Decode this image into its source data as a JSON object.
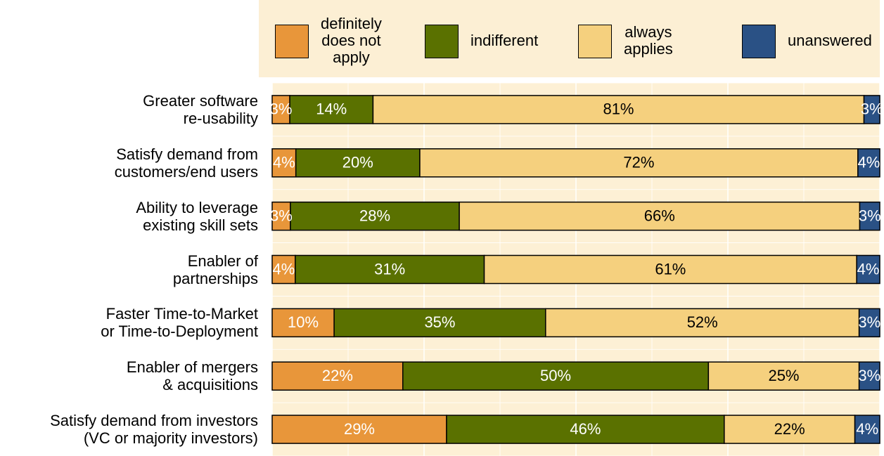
{
  "chart_data": {
    "type": "stacked_barh",
    "categories": [
      "Greater software\nre-usability",
      "Satisfy demand from\ncustomers/end users",
      "Ability to leverage\nexisting skill sets",
      "Enabler of\npartnerships",
      "Faster Time-to-Market\nor Time-to-Deployment",
      "Enabler of mergers\n& acquisitions",
      "Satisfy demand from investors\n(VC or majority investors)"
    ],
    "series": [
      {
        "name": "definitely\ndoes not\napply",
        "color": "#e8963a",
        "label_color": "#ffffff",
        "values": [
          2.9,
          3.9,
          3.0,
          3.8,
          10.2,
          21.5,
          28.7
        ],
        "value_labels": [
          "3%",
          "4%",
          "3%",
          "4%",
          "10%",
          "22%",
          "29%"
        ]
      },
      {
        "name": "indifferent",
        "color": "#5a7100",
        "label_color": "#ffffff",
        "values": [
          13.7,
          20.4,
          27.8,
          31.1,
          34.8,
          50.3,
          45.7
        ],
        "value_labels": [
          "14%",
          "20%",
          "28%",
          "31%",
          "35%",
          "50%",
          "46%"
        ]
      },
      {
        "name": "always\napplies",
        "color": "#f5d07e",
        "label_color": "#000000",
        "values": [
          80.8,
          72.1,
          65.9,
          61.3,
          51.6,
          24.8,
          21.5
        ],
        "value_labels": [
          "81%",
          "72%",
          "66%",
          "61%",
          "52%",
          "25%",
          "22%"
        ]
      },
      {
        "name": "unanswered",
        "color": "#2a5185",
        "label_color": "#ffffff",
        "values": [
          2.6,
          3.6,
          3.3,
          3.8,
          3.4,
          3.4,
          4.1
        ],
        "value_labels": [
          "3%",
          "4%",
          "3%",
          "4%",
          "3%",
          "3%",
          "4%"
        ]
      }
    ],
    "xlim": [
      0,
      100
    ],
    "xticks": [
      0,
      12.5,
      25,
      37.5,
      50,
      62.5,
      75,
      87.5,
      100
    ],
    "grid": true,
    "legend": "top"
  }
}
